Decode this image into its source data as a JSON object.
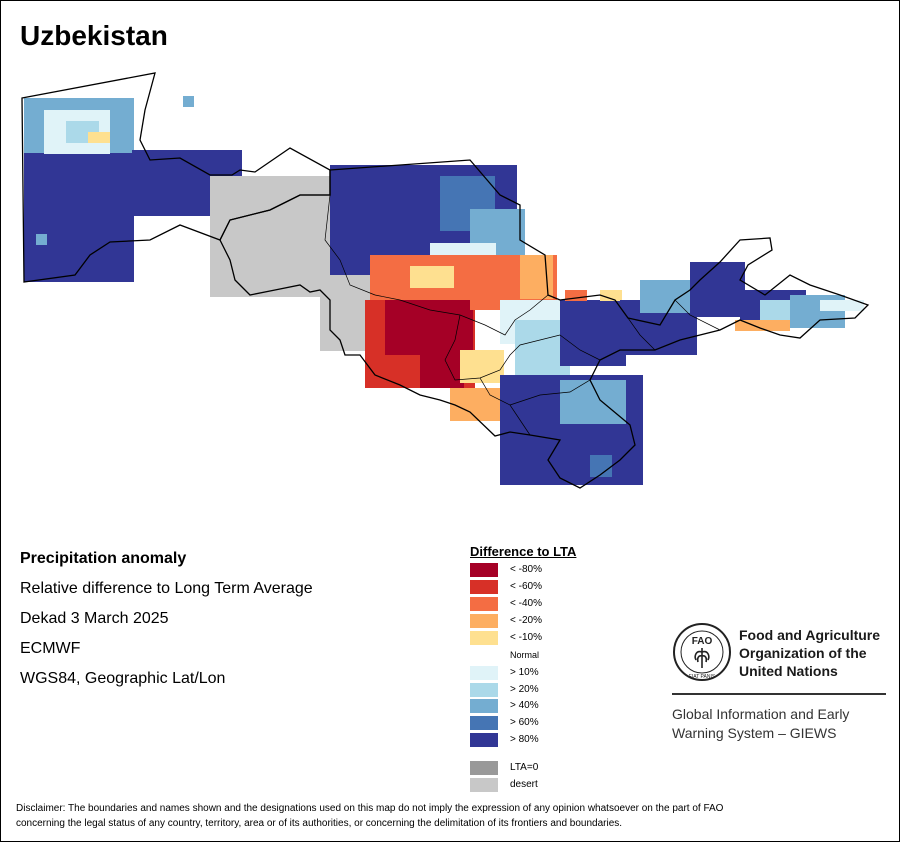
{
  "map": {
    "title": "Uzbekistan",
    "info": {
      "variable": "Precipitation anomaly",
      "description": "Relative difference to Long Term Average",
      "period": "Dekad 3 March 2025",
      "source": "ECMWF",
      "projection": "WGS84, Geographic Lat/Lon"
    },
    "legend": {
      "title": "Difference to LTA",
      "classes": [
        {
          "label": "< -80%",
          "color": "#a50026"
        },
        {
          "label": "< -60%",
          "color": "#d73027"
        },
        {
          "label": "< -40%",
          "color": "#f46d43"
        },
        {
          "label": "< -20%",
          "color": "#fdae61"
        },
        {
          "label": "< -10%",
          "color": "#fee090"
        },
        {
          "label": "Normal",
          "color": "#ffffff"
        },
        {
          "label": "> 10%",
          "color": "#e0f3f8"
        },
        {
          "label": "> 20%",
          "color": "#abd9e9"
        },
        {
          "label": "> 40%",
          "color": "#74add1"
        },
        {
          "label": "> 60%",
          "color": "#4575b4"
        },
        {
          "label": "> 80%",
          "color": "#313695"
        }
      ],
      "extra": [
        {
          "label": "LTA=0",
          "color": "#999999"
        },
        {
          "label": "desert",
          "color": "#c8c8c8"
        }
      ]
    },
    "organization": {
      "name_line1": "Food and Agriculture",
      "name_line2": "Organization of the",
      "name_line3": "United Nations",
      "logo_text": "FAO",
      "logo_motto": "FIAT PANIS",
      "program_line1": "Global Information and Early",
      "program_line2": "Warning System – GIEWS"
    },
    "disclaimer_line1": "Disclaimer: The boundaries and names shown and the designations used on this map do not imply the expression of any opinion whatsoever on the part of FAO",
    "disclaimer_line2": "concerning the legal status of any country, territory, area or of its authorities, or concerning the delimitation of its frontiers and boundaries."
  }
}
